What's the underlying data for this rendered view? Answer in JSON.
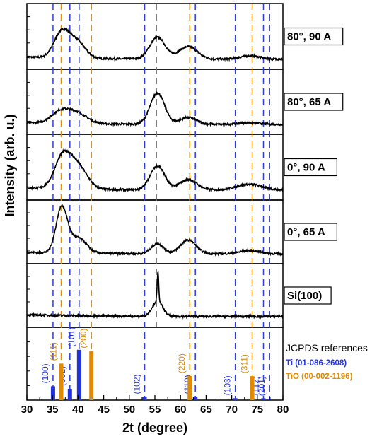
{
  "chart_data": {
    "type": "line",
    "xlabel": "2t (degree)",
    "ylabel": "Intensity (arb. u.)",
    "xlim": [
      30,
      80
    ],
    "x_ticks": [
      "30",
      "35",
      "40",
      "45",
      "50",
      "55",
      "60",
      "65",
      "70",
      "75",
      "80"
    ],
    "grid": false,
    "panels": [
      {
        "label": "80°, 90 A",
        "peaks": [
          [
            36.8,
            0.45,
            1.5
          ],
          [
            39.8,
            0.28,
            1.6
          ],
          [
            55.5,
            0.38,
            1.5
          ],
          [
            61.5,
            0.22,
            1.8
          ],
          [
            73.5,
            0.06,
            2.0
          ]
        ],
        "baseline": [
          0.1,
          0.04
        ]
      },
      {
        "label": "80°, 65 A",
        "peaks": [
          [
            36.5,
            0.2,
            1.8
          ],
          [
            39.8,
            0.18,
            2.0
          ],
          [
            55.5,
            0.55,
            1.4
          ],
          [
            61.5,
            0.12,
            1.6
          ],
          [
            73.5,
            0.03,
            2.0
          ]
        ],
        "baseline": [
          0.1,
          0.03
        ]
      },
      {
        "label": "0°, 90 A",
        "peaks": [
          [
            37.0,
            0.55,
            1.6
          ],
          [
            40.0,
            0.38,
            1.8
          ],
          [
            55.5,
            0.42,
            1.4
          ],
          [
            61.5,
            0.18,
            1.7
          ],
          [
            73.5,
            0.1,
            2.5
          ]
        ],
        "baseline": [
          0.1,
          0.04
        ]
      },
      {
        "label": "0°, 65 A",
        "peaks": [
          [
            36.8,
            0.82,
            1.1
          ],
          [
            40.0,
            0.28,
            1.6
          ],
          [
            55.5,
            0.18,
            1.2
          ],
          [
            61.5,
            0.25,
            1.5
          ],
          [
            73.5,
            0.06,
            2.0
          ]
        ],
        "baseline": [
          0.1,
          0.03
        ]
      },
      {
        "label": "Si(100)",
        "peaks": [
          [
            55.5,
            0.28,
            1.0
          ],
          [
            55.6,
            0.52,
            0.15
          ]
        ],
        "baseline": [
          0.12,
          0.03
        ]
      }
    ],
    "references": {
      "title": "JCPDS references",
      "series": [
        {
          "name": "Ti (01-086-2608)",
          "color": "#2233dd",
          "lines": [
            {
              "x": 35.1,
              "intensity": 0.22,
              "hkl": "(100)"
            },
            {
              "x": 38.4,
              "intensity": 0.18,
              "hkl": "(002)"
            },
            {
              "x": 40.2,
              "intensity": 0.8,
              "hkl": "(101)"
            },
            {
              "x": 53.0,
              "intensity": 0.05,
              "hkl": "(102)"
            },
            {
              "x": 62.9,
              "intensity": 0.05,
              "hkl": "(110)"
            },
            {
              "x": 70.7,
              "intensity": 0.03,
              "hkl": "(103)"
            },
            {
              "x": 76.2,
              "intensity": 0.03,
              "hkl": "(112)"
            },
            {
              "x": 77.4,
              "intensity": 0.02,
              "hkl": "(201)"
            }
          ]
        },
        {
          "name": "TiO (00-002-1196)",
          "color": "#e08a00",
          "lines": [
            {
              "x": 36.7,
              "intensity": 0.58,
              "hkl": "(111)"
            },
            {
              "x": 42.6,
              "intensity": 0.78,
              "hkl": "(200)"
            },
            {
              "x": 61.8,
              "intensity": 0.38,
              "hkl": "(220)"
            },
            {
              "x": 74.0,
              "intensity": 0.38,
              "hkl": "(311)"
            }
          ]
        }
      ]
    },
    "si_reference_line": {
      "x": 55.3,
      "color": "#777777"
    }
  }
}
